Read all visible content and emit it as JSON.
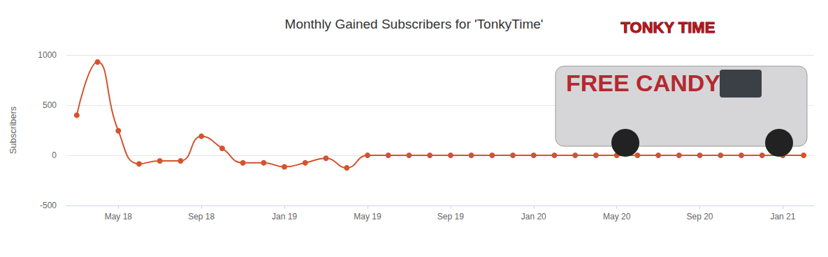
{
  "chart_data": {
    "type": "line",
    "title": "Monthly Gained Subscribers for 'TonkyTime'",
    "y_label": "Subscribers",
    "categories": [
      null,
      null,
      "May 18",
      null,
      null,
      null,
      "Sep 18",
      null,
      null,
      null,
      "Jan 19",
      null,
      null,
      null,
      "May 19",
      null,
      null,
      null,
      "Sep 19",
      null,
      null,
      null,
      "Jan 20",
      null,
      null,
      null,
      "May 20",
      null,
      null,
      null,
      "Sep 20",
      null,
      null,
      null,
      "Jan 21",
      null
    ],
    "values": [
      400,
      930,
      245,
      -85,
      -55,
      -55,
      190,
      70,
      -75,
      -75,
      -115,
      -75,
      -30,
      -125,
      0,
      0,
      0,
      0,
      0,
      0,
      0,
      0,
      0,
      0,
      0,
      0,
      0,
      0,
      0,
      0,
      0,
      0,
      0,
      0,
      0,
      0
    ],
    "color": "#d4532e",
    "marker": "circle",
    "line_style": "solid",
    "ylim": [
      -500,
      1000
    ],
    "yticks": [
      -500,
      0,
      500,
      1000
    ],
    "grid": true,
    "annotations": [
      "FREE CANDY",
      "TONKY TIME"
    ]
  }
}
